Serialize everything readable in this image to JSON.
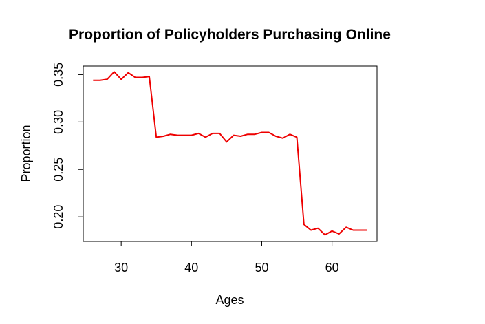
{
  "chart_data": {
    "type": "line",
    "title": "Proportion of Policyholders Purchasing Online",
    "xlabel": "Ages",
    "ylabel": "Proportion",
    "xlim": [
      24.6,
      66.4
    ],
    "ylim": [
      0.174,
      0.359
    ],
    "x_ticks": [
      30,
      40,
      50,
      60
    ],
    "y_ticks": [
      0.2,
      0.25,
      0.3,
      0.35
    ],
    "x_tick_labels": [
      "30",
      "40",
      "50",
      "60"
    ],
    "y_tick_labels": [
      "0.20",
      "0.25",
      "0.30",
      "0.35"
    ],
    "grid": false,
    "legend": "none",
    "line_color": "#ee0000",
    "series": [
      {
        "x": [
          26,
          27,
          28,
          29,
          30,
          31,
          32,
          33,
          34,
          35,
          36,
          37,
          38,
          39,
          40,
          41,
          42,
          43,
          44,
          45,
          46,
          47,
          48,
          49,
          50,
          51,
          52,
          53,
          54,
          55,
          56,
          57,
          58,
          59,
          60,
          61,
          62,
          63,
          64,
          65
        ],
        "values": [
          0.344,
          0.344,
          0.345,
          0.353,
          0.345,
          0.352,
          0.347,
          0.347,
          0.348,
          0.284,
          0.285,
          0.287,
          0.286,
          0.286,
          0.286,
          0.288,
          0.284,
          0.288,
          0.288,
          0.279,
          0.286,
          0.285,
          0.287,
          0.287,
          0.289,
          0.289,
          0.285,
          0.283,
          0.287,
          0.284,
          0.192,
          0.186,
          0.188,
          0.181,
          0.185,
          0.182,
          0.189,
          0.186,
          0.186,
          0.186
        ]
      }
    ]
  }
}
